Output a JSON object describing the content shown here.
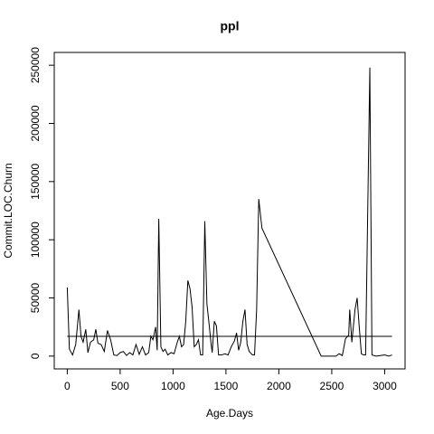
{
  "chart_data": {
    "type": "line",
    "title": "ppl",
    "x_label": "Age.Days",
    "y_label": "Commit.LOC.Churn",
    "x": [
      0,
      20,
      50,
      80,
      110,
      130,
      150,
      175,
      195,
      220,
      250,
      270,
      290,
      320,
      350,
      380,
      410,
      440,
      470,
      500,
      530,
      560,
      590,
      620,
      650,
      680,
      710,
      740,
      770,
      790,
      810,
      835,
      850,
      865,
      885,
      905,
      925,
      950,
      980,
      1010,
      1040,
      1060,
      1080,
      1100,
      1120,
      1140,
      1160,
      1180,
      1200,
      1220,
      1240,
      1260,
      1280,
      1300,
      1320,
      1340,
      1360,
      1370,
      1390,
      1410,
      1430,
      1460,
      1490,
      1520,
      1550,
      1580,
      1600,
      1620,
      1640,
      1660,
      1680,
      1700,
      1720,
      1750,
      1770,
      1790,
      1810,
      1840,
      2400,
      2450,
      2500,
      2540,
      2570,
      2600,
      2630,
      2660,
      2670,
      2690,
      2720,
      2740,
      2760,
      2780,
      2800,
      2820,
      2860,
      2880,
      2920,
      2960,
      3000,
      3040,
      3070
    ],
    "series": [
      {
        "color": "#000000",
        "values": [
          59000,
          6000,
          1000,
          10000,
          40000,
          17000,
          12000,
          23000,
          3000,
          12000,
          14000,
          23000,
          11000,
          10000,
          4000,
          22000,
          14000,
          1000,
          500,
          3000,
          4000,
          500,
          3000,
          1000,
          10000,
          1500,
          8000,
          1000,
          3000,
          17000,
          14000,
          25000,
          5000,
          118000,
          8000,
          4000,
          6000,
          1000,
          3000,
          2000,
          12000,
          17000,
          8000,
          10000,
          30000,
          65000,
          58000,
          42000,
          8000,
          10000,
          14000,
          1000,
          1000,
          116000,
          45000,
          28000,
          10000,
          3000,
          30000,
          26000,
          1000,
          1000,
          2000,
          1000,
          8000,
          13000,
          20000,
          5000,
          12000,
          30000,
          40000,
          10000,
          4000,
          1000,
          1000,
          40000,
          135000,
          110000,
          0,
          0,
          0,
          0,
          2000,
          500,
          15000,
          18000,
          40000,
          12000,
          40000,
          50000,
          25000,
          2000,
          1000,
          1000,
          248000,
          1000,
          0,
          500,
          1000,
          0,
          1000
        ]
      }
    ],
    "hline": 17000,
    "xlim": [
      -123,
      3193
    ],
    "ylim": [
      -11000,
      261000
    ],
    "xticks": [
      0,
      500,
      1000,
      1500,
      2000,
      2500,
      3000
    ],
    "yticks": [
      0,
      50000,
      100000,
      150000,
      200000,
      250000
    ]
  }
}
